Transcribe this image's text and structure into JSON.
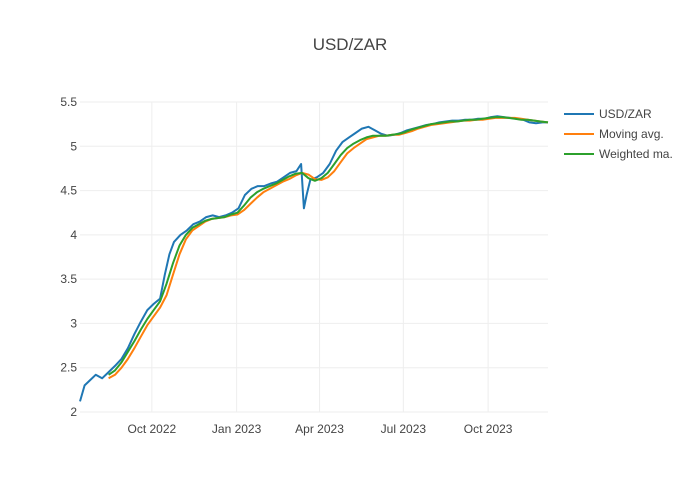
{
  "chart_data": {
    "type": "line",
    "title": "USD/ZAR",
    "xlabel": "",
    "ylabel": "",
    "ylim": [
      2,
      5.5
    ],
    "x_range": [
      "2022-07-15",
      "2023-12-05"
    ],
    "x_ticks": [
      {
        "date": "2022-10-01",
        "label": "Oct 2022"
      },
      {
        "date": "2023-01-01",
        "label": "Jan 2023"
      },
      {
        "date": "2023-04-01",
        "label": "Apr 2023"
      },
      {
        "date": "2023-07-01",
        "label": "Jul 2023"
      },
      {
        "date": "2023-10-01",
        "label": "Oct 2023"
      }
    ],
    "y_ticks": [
      2,
      2.5,
      3,
      3.5,
      4,
      4.5,
      5,
      5.5
    ],
    "y_tick_labels": [
      "2",
      "2.5",
      "3",
      "3.5",
      "4",
      "4.5",
      "5",
      "5.5"
    ],
    "grid": true,
    "legend_position": "top-right",
    "series": [
      {
        "name": "USD/ZAR",
        "color": "#1f77b4",
        "points": [
          [
            "2022-07-15",
            2.12
          ],
          [
            "2022-07-20",
            2.3
          ],
          [
            "2022-07-25",
            2.35
          ],
          [
            "2022-08-01",
            2.42
          ],
          [
            "2022-08-08",
            2.38
          ],
          [
            "2022-08-15",
            2.45
          ],
          [
            "2022-08-22",
            2.52
          ],
          [
            "2022-08-29",
            2.6
          ],
          [
            "2022-09-05",
            2.72
          ],
          [
            "2022-09-12",
            2.88
          ],
          [
            "2022-09-19",
            3.02
          ],
          [
            "2022-09-26",
            3.15
          ],
          [
            "2022-10-03",
            3.22
          ],
          [
            "2022-10-10",
            3.28
          ],
          [
            "2022-10-15",
            3.55
          ],
          [
            "2022-10-20",
            3.78
          ],
          [
            "2022-10-25",
            3.92
          ],
          [
            "2022-11-01",
            4.0
          ],
          [
            "2022-11-08",
            4.05
          ],
          [
            "2022-11-15",
            4.12
          ],
          [
            "2022-11-22",
            4.15
          ],
          [
            "2022-11-29",
            4.2
          ],
          [
            "2022-12-06",
            4.22
          ],
          [
            "2022-12-13",
            4.2
          ],
          [
            "2022-12-20",
            4.22
          ],
          [
            "2022-12-27",
            4.25
          ],
          [
            "2023-01-03",
            4.3
          ],
          [
            "2023-01-10",
            4.45
          ],
          [
            "2023-01-17",
            4.52
          ],
          [
            "2023-01-24",
            4.55
          ],
          [
            "2023-01-31",
            4.55
          ],
          [
            "2023-02-07",
            4.58
          ],
          [
            "2023-02-14",
            4.6
          ],
          [
            "2023-02-21",
            4.65
          ],
          [
            "2023-02-28",
            4.7
          ],
          [
            "2023-03-07",
            4.72
          ],
          [
            "2023-03-12",
            4.8
          ],
          [
            "2023-03-15",
            4.3
          ],
          [
            "2023-03-18",
            4.45
          ],
          [
            "2023-03-22",
            4.62
          ],
          [
            "2023-03-29",
            4.65
          ],
          [
            "2023-04-05",
            4.7
          ],
          [
            "2023-04-12",
            4.8
          ],
          [
            "2023-04-19",
            4.95
          ],
          [
            "2023-04-26",
            5.05
          ],
          [
            "2023-05-03",
            5.1
          ],
          [
            "2023-05-10",
            5.15
          ],
          [
            "2023-05-17",
            5.2
          ],
          [
            "2023-05-24",
            5.22
          ],
          [
            "2023-05-31",
            5.18
          ],
          [
            "2023-06-07",
            5.14
          ],
          [
            "2023-06-14",
            5.12
          ],
          [
            "2023-06-21",
            5.13
          ],
          [
            "2023-06-28",
            5.15
          ],
          [
            "2023-07-05",
            5.18
          ],
          [
            "2023-07-12",
            5.2
          ],
          [
            "2023-07-19",
            5.22
          ],
          [
            "2023-07-26",
            5.24
          ],
          [
            "2023-08-02",
            5.25
          ],
          [
            "2023-08-09",
            5.27
          ],
          [
            "2023-08-16",
            5.28
          ],
          [
            "2023-08-23",
            5.29
          ],
          [
            "2023-08-30",
            5.29
          ],
          [
            "2023-09-06",
            5.3
          ],
          [
            "2023-09-13",
            5.3
          ],
          [
            "2023-09-20",
            5.31
          ],
          [
            "2023-09-27",
            5.31
          ],
          [
            "2023-10-04",
            5.33
          ],
          [
            "2023-10-11",
            5.34
          ],
          [
            "2023-10-18",
            5.33
          ],
          [
            "2023-10-25",
            5.32
          ],
          [
            "2023-11-01",
            5.31
          ],
          [
            "2023-11-08",
            5.3
          ],
          [
            "2023-11-15",
            5.27
          ],
          [
            "2023-11-22",
            5.26
          ],
          [
            "2023-11-29",
            5.27
          ],
          [
            "2023-12-05",
            5.27
          ]
        ]
      },
      {
        "name": "Moving avg.",
        "color": "#ff7f0e",
        "points": [
          [
            "2022-08-15",
            2.38
          ],
          [
            "2022-08-22",
            2.42
          ],
          [
            "2022-08-29",
            2.5
          ],
          [
            "2022-09-05",
            2.6
          ],
          [
            "2022-09-12",
            2.72
          ],
          [
            "2022-09-19",
            2.85
          ],
          [
            "2022-09-26",
            2.98
          ],
          [
            "2022-10-03",
            3.08
          ],
          [
            "2022-10-10",
            3.18
          ],
          [
            "2022-10-17",
            3.32
          ],
          [
            "2022-10-24",
            3.55
          ],
          [
            "2022-10-31",
            3.78
          ],
          [
            "2022-11-07",
            3.95
          ],
          [
            "2022-11-14",
            4.05
          ],
          [
            "2022-11-21",
            4.1
          ],
          [
            "2022-11-28",
            4.15
          ],
          [
            "2022-12-05",
            4.18
          ],
          [
            "2022-12-12",
            4.19
          ],
          [
            "2022-12-19",
            4.2
          ],
          [
            "2022-12-26",
            4.22
          ],
          [
            "2023-01-02",
            4.23
          ],
          [
            "2023-01-09",
            4.28
          ],
          [
            "2023-01-16",
            4.35
          ],
          [
            "2023-01-23",
            4.42
          ],
          [
            "2023-01-30",
            4.48
          ],
          [
            "2023-02-06",
            4.52
          ],
          [
            "2023-02-13",
            4.56
          ],
          [
            "2023-02-20",
            4.6
          ],
          [
            "2023-02-27",
            4.63
          ],
          [
            "2023-03-06",
            4.67
          ],
          [
            "2023-03-13",
            4.7
          ],
          [
            "2023-03-20",
            4.68
          ],
          [
            "2023-03-27",
            4.63
          ],
          [
            "2023-04-03",
            4.62
          ],
          [
            "2023-04-10",
            4.65
          ],
          [
            "2023-04-17",
            4.72
          ],
          [
            "2023-04-24",
            4.82
          ],
          [
            "2023-05-01",
            4.92
          ],
          [
            "2023-05-08",
            4.98
          ],
          [
            "2023-05-15",
            5.03
          ],
          [
            "2023-05-22",
            5.08
          ],
          [
            "2023-05-29",
            5.1
          ],
          [
            "2023-06-05",
            5.12
          ],
          [
            "2023-06-12",
            5.12
          ],
          [
            "2023-06-19",
            5.13
          ],
          [
            "2023-06-26",
            5.13
          ],
          [
            "2023-07-03",
            5.15
          ],
          [
            "2023-07-10",
            5.17
          ],
          [
            "2023-07-17",
            5.2
          ],
          [
            "2023-07-24",
            5.22
          ],
          [
            "2023-07-31",
            5.24
          ],
          [
            "2023-08-07",
            5.25
          ],
          [
            "2023-08-14",
            5.26
          ],
          [
            "2023-08-21",
            5.27
          ],
          [
            "2023-08-28",
            5.28
          ],
          [
            "2023-09-04",
            5.29
          ],
          [
            "2023-09-11",
            5.29
          ],
          [
            "2023-09-18",
            5.3
          ],
          [
            "2023-09-25",
            5.3
          ],
          [
            "2023-10-02",
            5.31
          ],
          [
            "2023-10-09",
            5.32
          ],
          [
            "2023-10-16",
            5.32
          ],
          [
            "2023-10-23",
            5.32
          ],
          [
            "2023-10-30",
            5.32
          ],
          [
            "2023-11-06",
            5.31
          ],
          [
            "2023-11-13",
            5.3
          ],
          [
            "2023-11-20",
            5.29
          ],
          [
            "2023-11-27",
            5.28
          ],
          [
            "2023-12-05",
            5.27
          ]
        ]
      },
      {
        "name": "Weighted ma.",
        "color": "#2ca02c",
        "points": [
          [
            "2022-08-15",
            2.42
          ],
          [
            "2022-08-22",
            2.47
          ],
          [
            "2022-08-29",
            2.56
          ],
          [
            "2022-09-05",
            2.68
          ],
          [
            "2022-09-12",
            2.8
          ],
          [
            "2022-09-19",
            2.93
          ],
          [
            "2022-09-26",
            3.05
          ],
          [
            "2022-10-03",
            3.15
          ],
          [
            "2022-10-10",
            3.25
          ],
          [
            "2022-10-17",
            3.45
          ],
          [
            "2022-10-24",
            3.68
          ],
          [
            "2022-10-31",
            3.88
          ],
          [
            "2022-11-07",
            4.0
          ],
          [
            "2022-11-14",
            4.08
          ],
          [
            "2022-11-21",
            4.12
          ],
          [
            "2022-11-28",
            4.16
          ],
          [
            "2022-12-05",
            4.18
          ],
          [
            "2022-12-12",
            4.19
          ],
          [
            "2022-12-19",
            4.2
          ],
          [
            "2022-12-26",
            4.23
          ],
          [
            "2023-01-02",
            4.25
          ],
          [
            "2023-01-09",
            4.33
          ],
          [
            "2023-01-16",
            4.42
          ],
          [
            "2023-01-23",
            4.48
          ],
          [
            "2023-01-30",
            4.52
          ],
          [
            "2023-02-06",
            4.55
          ],
          [
            "2023-02-13",
            4.58
          ],
          [
            "2023-02-20",
            4.62
          ],
          [
            "2023-02-27",
            4.66
          ],
          [
            "2023-03-06",
            4.69
          ],
          [
            "2023-03-13",
            4.7
          ],
          [
            "2023-03-20",
            4.64
          ],
          [
            "2023-03-27",
            4.61
          ],
          [
            "2023-04-03",
            4.64
          ],
          [
            "2023-04-10",
            4.7
          ],
          [
            "2023-04-17",
            4.8
          ],
          [
            "2023-04-24",
            4.9
          ],
          [
            "2023-05-01",
            4.98
          ],
          [
            "2023-05-08",
            5.03
          ],
          [
            "2023-05-15",
            5.07
          ],
          [
            "2023-05-22",
            5.1
          ],
          [
            "2023-05-29",
            5.12
          ],
          [
            "2023-06-05",
            5.12
          ],
          [
            "2023-06-12",
            5.12
          ],
          [
            "2023-06-19",
            5.13
          ],
          [
            "2023-06-26",
            5.14
          ],
          [
            "2023-07-03",
            5.16
          ],
          [
            "2023-07-10",
            5.19
          ],
          [
            "2023-07-17",
            5.21
          ],
          [
            "2023-07-24",
            5.23
          ],
          [
            "2023-07-31",
            5.25
          ],
          [
            "2023-08-07",
            5.26
          ],
          [
            "2023-08-14",
            5.27
          ],
          [
            "2023-08-21",
            5.28
          ],
          [
            "2023-08-28",
            5.28
          ],
          [
            "2023-09-04",
            5.29
          ],
          [
            "2023-09-11",
            5.3
          ],
          [
            "2023-09-18",
            5.3
          ],
          [
            "2023-09-25",
            5.31
          ],
          [
            "2023-10-02",
            5.32
          ],
          [
            "2023-10-09",
            5.33
          ],
          [
            "2023-10-16",
            5.33
          ],
          [
            "2023-10-23",
            5.32
          ],
          [
            "2023-10-30",
            5.31
          ],
          [
            "2023-11-06",
            5.3
          ],
          [
            "2023-11-13",
            5.3
          ],
          [
            "2023-11-20",
            5.29
          ],
          [
            "2023-11-27",
            5.28
          ],
          [
            "2023-12-05",
            5.27
          ]
        ]
      }
    ]
  }
}
